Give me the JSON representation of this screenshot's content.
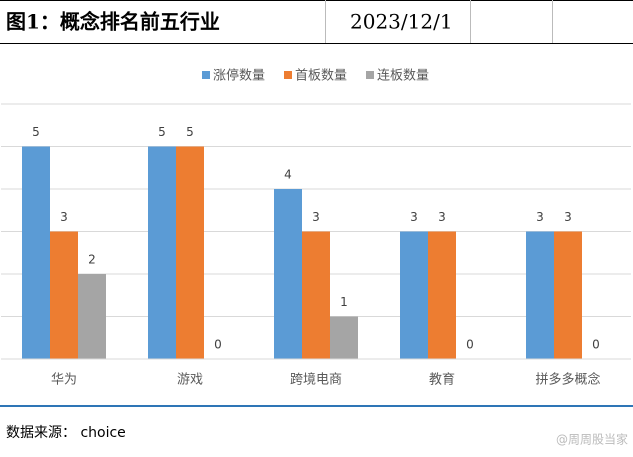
{
  "header": {
    "title": "图1：概念排名前五行业",
    "date": "2023/12/1"
  },
  "chart_data": {
    "type": "bar",
    "categories": [
      "华为",
      "游戏",
      "跨境电商",
      "教育",
      "拼多多概念"
    ],
    "series": [
      {
        "name": "涨停数量",
        "color": "#5b9bd5",
        "values": [
          5,
          5,
          4,
          3,
          3
        ]
      },
      {
        "name": "首板数量",
        "color": "#ed7d31",
        "values": [
          3,
          5,
          3,
          3,
          3
        ]
      },
      {
        "name": "连板数量",
        "color": "#a5a5a5",
        "values": [
          2,
          0,
          1,
          0,
          0
        ]
      }
    ],
    "ylim": [
      0,
      6
    ],
    "yticks": [
      0,
      1,
      2,
      3,
      4,
      5,
      6
    ],
    "grid": true,
    "legend": "top"
  },
  "source": "数据来源： choice",
  "watermark": "@周周股当家"
}
